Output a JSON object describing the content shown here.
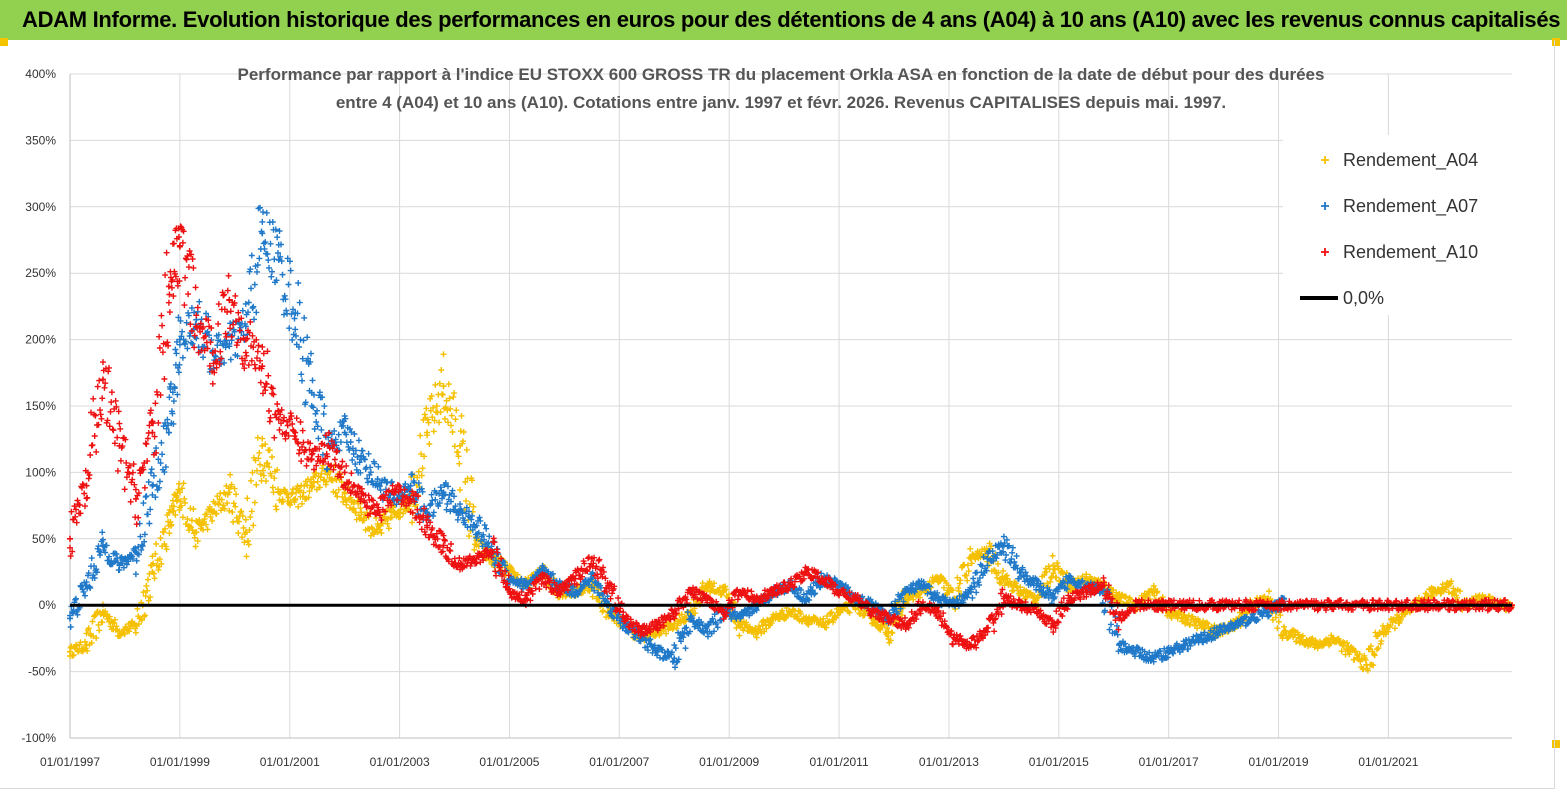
{
  "banner": {
    "title": "ADAM Informe. Evolution historique des performances en euros pour des détentions de 4 ans (A04) à 10 ans (A10) avec les revenus connus capitalisés",
    "background": "#92d050"
  },
  "chart_data": {
    "type": "scatter",
    "title_line1": "Performance par rapport à l'indice EU STOXX 600 GROSS TR  du placement Orkla ASA en fonction de la date de début pour des durées",
    "title_line2": "entre 4 (A04) et 10 ans (A10). Cotations entre janv. 1997 et févr. 2026. Revenus CAPITALISES depuis mai. 1997.",
    "ylim": [
      -100,
      400
    ],
    "yticks": [
      "-100%",
      "-50%",
      "0%",
      "50%",
      "100%",
      "150%",
      "200%",
      "250%",
      "300%",
      "350%",
      "400%"
    ],
    "x_range": [
      1997.0,
      2023.25
    ],
    "xticks": [
      {
        "label": "01/01/1997",
        "year": 1997
      },
      {
        "label": "01/01/1999",
        "year": 1999
      },
      {
        "label": "01/01/2001",
        "year": 2001
      },
      {
        "label": "01/01/2003",
        "year": 2003
      },
      {
        "label": "01/01/2005",
        "year": 2005
      },
      {
        "label": "01/01/2007",
        "year": 2007
      },
      {
        "label": "01/01/2009",
        "year": 2009
      },
      {
        "label": "01/01/2011",
        "year": 2011
      },
      {
        "label": "01/01/2013",
        "year": 2013
      },
      {
        "label": "01/01/2015",
        "year": 2015
      },
      {
        "label": "01/01/2017",
        "year": 2017
      },
      {
        "label": "01/01/2019",
        "year": 2019
      },
      {
        "label": "01/01/2021",
        "year": 2021
      }
    ],
    "series": [
      {
        "name": "Rendement_A04",
        "color": "#f5c000",
        "marker": "+",
        "x": [
          1997.0,
          1997.3,
          1997.6,
          1997.9,
          1998.2,
          1998.5,
          1998.8,
          1999.0,
          1999.3,
          1999.6,
          1999.9,
          2000.2,
          2000.5,
          2000.8,
          2001.1,
          2001.4,
          2001.7,
          2002.0,
          2002.3,
          2002.6,
          2002.9,
          2003.2,
          2003.5,
          2003.8,
          2004.1,
          2004.4,
          2004.7,
          2005.0,
          2005.3,
          2005.6,
          2005.9,
          2006.2,
          2006.5,
          2006.8,
          2007.1,
          2007.4,
          2007.7,
          2008.0,
          2008.3,
          2008.6,
          2008.9,
          2009.2,
          2009.5,
          2009.8,
          2010.1,
          2010.4,
          2010.7,
          2011.0,
          2011.3,
          2011.6,
          2011.9,
          2012.2,
          2012.5,
          2012.8,
          2013.1,
          2013.4,
          2013.7,
          2014.0,
          2014.3,
          2014.6,
          2014.9,
          2015.2,
          2015.5,
          2015.8,
          2016.1,
          2016.4,
          2016.7,
          2017.0,
          2017.3,
          2017.6,
          2017.9,
          2018.2,
          2018.5,
          2018.8,
          2019.1,
          2019.4,
          2019.7,
          2020.0,
          2020.3,
          2020.6,
          2020.9,
          2021.2,
          2021.5,
          2021.8,
          2022.1,
          2022.4,
          2022.7,
          2023.0,
          2023.25
        ],
        "y": [
          -35,
          -30,
          -5,
          -20,
          -15,
          25,
          60,
          85,
          55,
          70,
          85,
          55,
          120,
          85,
          80,
          90,
          100,
          85,
          70,
          55,
          70,
          80,
          130,
          165,
          120,
          45,
          35,
          25,
          15,
          25,
          10,
          10,
          15,
          -5,
          -15,
          -25,
          -20,
          -15,
          -5,
          15,
          10,
          -15,
          -20,
          -10,
          -5,
          -10,
          -15,
          -5,
          0,
          -10,
          -20,
          5,
          10,
          20,
          5,
          35,
          40,
          20,
          10,
          5,
          30,
          15,
          20,
          15,
          5,
          0,
          10,
          -5,
          -10,
          -15,
          -20,
          -15,
          0,
          5,
          -20,
          -25,
          -30,
          -25,
          -35,
          -45,
          -20,
          -10,
          0,
          10,
          15,
          0,
          5,
          0,
          0
        ]
      },
      {
        "name": "Rendement_A07",
        "color": "#1f78c8",
        "marker": "+",
        "x": [
          1997.0,
          1997.3,
          1997.6,
          1997.9,
          1998.2,
          1998.5,
          1998.8,
          1999.0,
          1999.3,
          1999.6,
          1999.9,
          2000.2,
          2000.5,
          2000.8,
          2001.1,
          2001.4,
          2001.7,
          2002.0,
          2002.3,
          2002.6,
          2002.9,
          2003.2,
          2003.5,
          2003.8,
          2004.1,
          2004.4,
          2004.7,
          2005.0,
          2005.3,
          2005.6,
          2005.9,
          2006.2,
          2006.5,
          2006.8,
          2007.1,
          2007.4,
          2007.7,
          2008.0,
          2008.3,
          2008.6,
          2008.9,
          2009.2,
          2009.5,
          2009.8,
          2010.1,
          2010.4,
          2010.7,
          2011.0,
          2011.3,
          2011.6,
          2011.9,
          2012.2,
          2012.5,
          2012.8,
          2013.1,
          2013.4,
          2013.7,
          2014.0,
          2014.3,
          2014.6,
          2014.9,
          2015.2,
          2015.5,
          2015.8,
          2016.1,
          2016.4,
          2016.7,
          2017.0,
          2017.3,
          2017.6,
          2017.9,
          2018.2,
          2018.5,
          2018.8,
          2019.0,
          2019.1
        ],
        "y": [
          -10,
          15,
          45,
          30,
          40,
          90,
          130,
          200,
          215,
          190,
          195,
          210,
          280,
          260,
          220,
          160,
          120,
          130,
          110,
          95,
          80,
          90,
          70,
          85,
          70,
          60,
          40,
          20,
          15,
          25,
          15,
          10,
          20,
          0,
          -15,
          -25,
          -35,
          -40,
          -10,
          -20,
          -5,
          -10,
          0,
          10,
          15,
          5,
          20,
          15,
          5,
          0,
          -10,
          10,
          15,
          5,
          0,
          10,
          35,
          45,
          25,
          15,
          5,
          20,
          15,
          10,
          -30,
          -35,
          -40,
          -35,
          -30,
          -25,
          -20,
          -15,
          -10,
          -5,
          0,
          5
        ]
      },
      {
        "name": "Rendement_A10",
        "color": "#ee1111",
        "marker": "+",
        "x": [
          1997.0,
          1997.3,
          1997.6,
          1997.9,
          1998.2,
          1998.5,
          1998.8,
          1999.0,
          1999.3,
          1999.6,
          1999.9,
          2000.2,
          2000.5,
          2000.8,
          2001.1,
          2001.4,
          2001.7,
          2002.0,
          2002.3,
          2002.6,
          2002.9,
          2003.2,
          2003.5,
          2003.8,
          2004.1,
          2004.4,
          2004.7,
          2005.0,
          2005.3,
          2005.6,
          2005.9,
          2006.2,
          2006.5,
          2006.8,
          2007.1,
          2007.4,
          2007.7,
          2008.0,
          2008.3,
          2008.6,
          2008.9,
          2009.2,
          2009.5,
          2009.8,
          2010.1,
          2010.4,
          2010.7,
          2011.0,
          2011.3,
          2011.6,
          2011.9,
          2012.2,
          2012.5,
          2012.8,
          2013.1,
          2013.4,
          2013.7,
          2014.0,
          2014.3,
          2014.6,
          2014.9,
          2015.2,
          2015.5,
          2015.8,
          2016.1,
          2016.4,
          2016.7,
          2017.0,
          2017.3,
          2017.6,
          2017.9,
          2018.2,
          2018.5,
          2018.8,
          2019.1,
          2019.4,
          2019.7,
          2020.0,
          2020.3,
          2020.6,
          2020.9,
          2021.2,
          2021.5,
          2021.8,
          2022.1,
          2022.4,
          2022.7,
          2023.0,
          2023.25
        ],
        "y": [
          50,
          90,
          170,
          120,
          80,
          130,
          240,
          270,
          210,
          190,
          230,
          200,
          180,
          140,
          130,
          110,
          120,
          100,
          80,
          70,
          85,
          80,
          60,
          45,
          30,
          35,
          40,
          10,
          5,
          20,
          10,
          20,
          35,
          15,
          -10,
          -20,
          -15,
          -5,
          10,
          5,
          -5,
          10,
          5,
          10,
          15,
          25,
          20,
          10,
          5,
          -5,
          -10,
          -15,
          0,
          -5,
          -25,
          -30,
          -20,
          5,
          0,
          -5,
          -15,
          5,
          10,
          15,
          -10,
          0,
          0,
          0,
          0,
          0,
          0,
          0,
          0,
          0,
          0,
          0,
          0,
          0,
          0,
          0,
          0,
          0,
          0,
          0,
          0,
          0,
          0,
          0,
          0
        ]
      },
      {
        "name": "0,0%",
        "color": "#000000",
        "marker": "line",
        "x": [
          1997.0,
          2023.25
        ],
        "y": [
          0,
          0
        ]
      }
    ],
    "legend_position": "top-right"
  }
}
